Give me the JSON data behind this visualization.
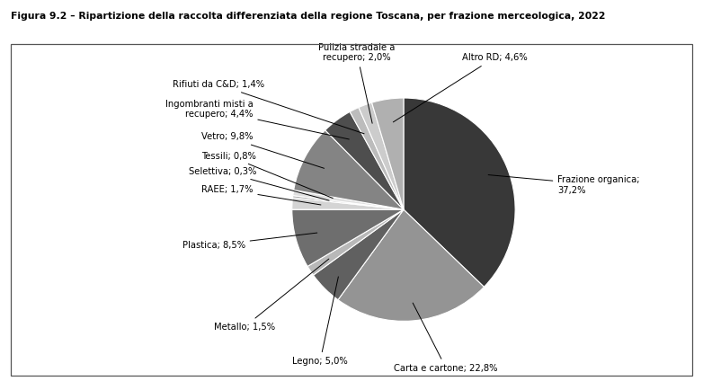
{
  "title": "Figura 9.2 – Ripartizione della raccolta differenziata della regione Toscana, per frazione merceologica, 2022",
  "slices": [
    {
      "label": "Frazione organica;\n37,2%",
      "value": 37.2,
      "color": "#383838"
    },
    {
      "label": "Carta e cartone; 22,8%",
      "value": 22.8,
      "color": "#949494"
    },
    {
      "label": "Legno; 5,0%",
      "value": 5.0,
      "color": "#606060"
    },
    {
      "label": "Metallo; 1,5%",
      "value": 1.5,
      "color": "#b8b8b8"
    },
    {
      "label": "Plastica; 8,5%",
      "value": 8.5,
      "color": "#6e6e6e"
    },
    {
      "label": "RAEE; 1,7%",
      "value": 1.7,
      "color": "#d4d4d4"
    },
    {
      "label": "Selettiva; 0,3%",
      "value": 0.3,
      "color": "#a8a8a8"
    },
    {
      "label": "Tessili; 0,8%",
      "value": 0.8,
      "color": "#e0e0e0"
    },
    {
      "label": "Vetro; 9,8%",
      "value": 9.8,
      "color": "#848484"
    },
    {
      "label": "Ingombranti misti a\nrecupero; 4,4%",
      "value": 4.4,
      "color": "#4e4e4e"
    },
    {
      "label": "Rifiuti da C&D; 1,4%",
      "value": 1.4,
      "color": "#bcbcbc"
    },
    {
      "label": "Pulizia stradale a\nrecupero; 2,0%",
      "value": 2.0,
      "color": "#cccccc"
    },
    {
      "label": "Altro RD; 4,6%",
      "value": 4.6,
      "color": "#b0b0b0"
    }
  ],
  "startangle": 90,
  "figure_bg": "#ffffff"
}
